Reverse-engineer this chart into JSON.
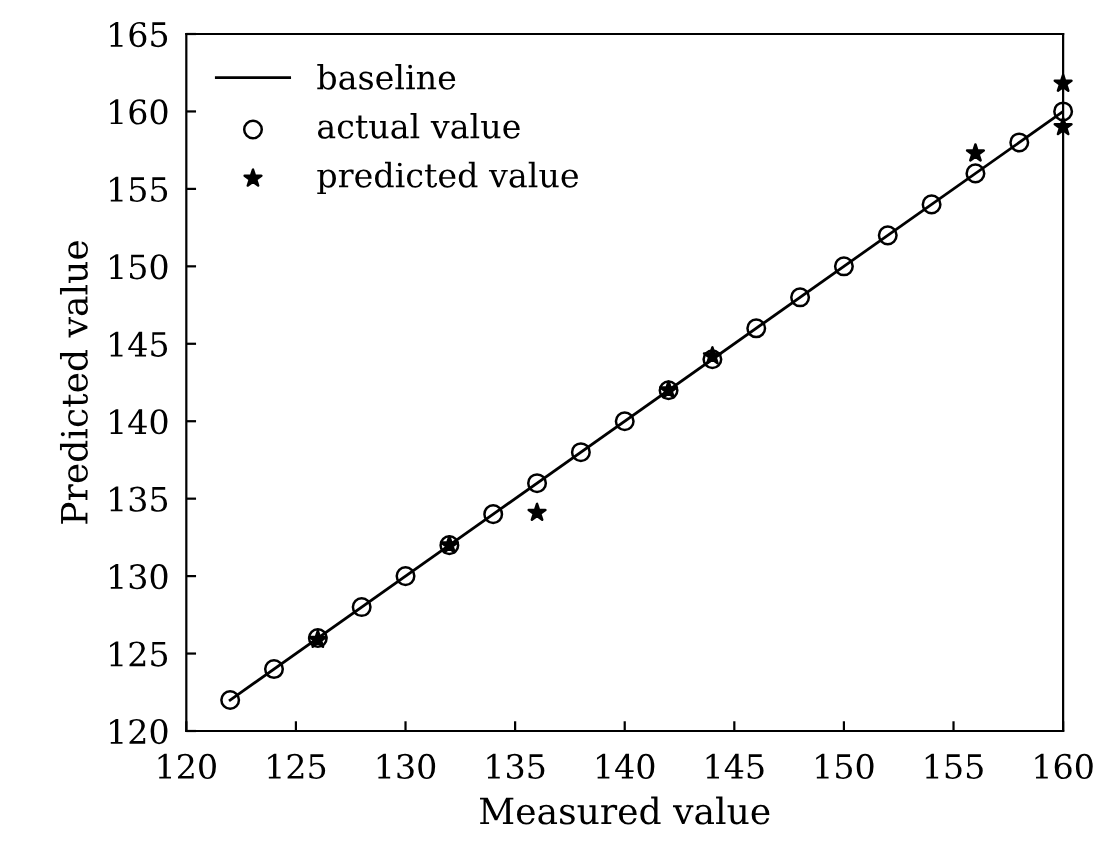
{
  "chart_data": {
    "type": "scatter",
    "xlabel": "Measured value",
    "ylabel": "Predicted value",
    "xlim": [
      120,
      160
    ],
    "ylim": [
      120,
      165
    ],
    "xticks": [
      120,
      125,
      130,
      135,
      140,
      145,
      150,
      155,
      160
    ],
    "yticks": [
      120,
      125,
      130,
      135,
      140,
      145,
      150,
      155,
      160,
      165
    ],
    "grid": false,
    "legend": "top left",
    "series": [
      {
        "name": "baseline",
        "type": "line",
        "color": "#000000",
        "marker": "none",
        "x": [
          122,
          160
        ],
        "values": [
          122,
          160
        ]
      },
      {
        "name": "actual value",
        "color": "#000000",
        "marker": "circle",
        "x": [
          122,
          124,
          126,
          128,
          130,
          132,
          134,
          136,
          138,
          140,
          142,
          144,
          146,
          148,
          150,
          152,
          154,
          156,
          158,
          160
        ],
        "values": [
          122,
          124,
          126,
          128,
          130,
          132,
          134,
          136,
          138,
          140,
          142,
          144,
          146,
          148,
          150,
          152,
          154,
          156,
          158,
          160
        ]
      },
      {
        "name": "predicted value",
        "color": "#000000",
        "marker": "star",
        "x": [
          126,
          132,
          136,
          142,
          144,
          156,
          160,
          160
        ],
        "values": [
          125.9,
          132,
          134.1,
          142,
          144.2,
          157.3,
          161.8,
          159.0
        ]
      }
    ]
  }
}
